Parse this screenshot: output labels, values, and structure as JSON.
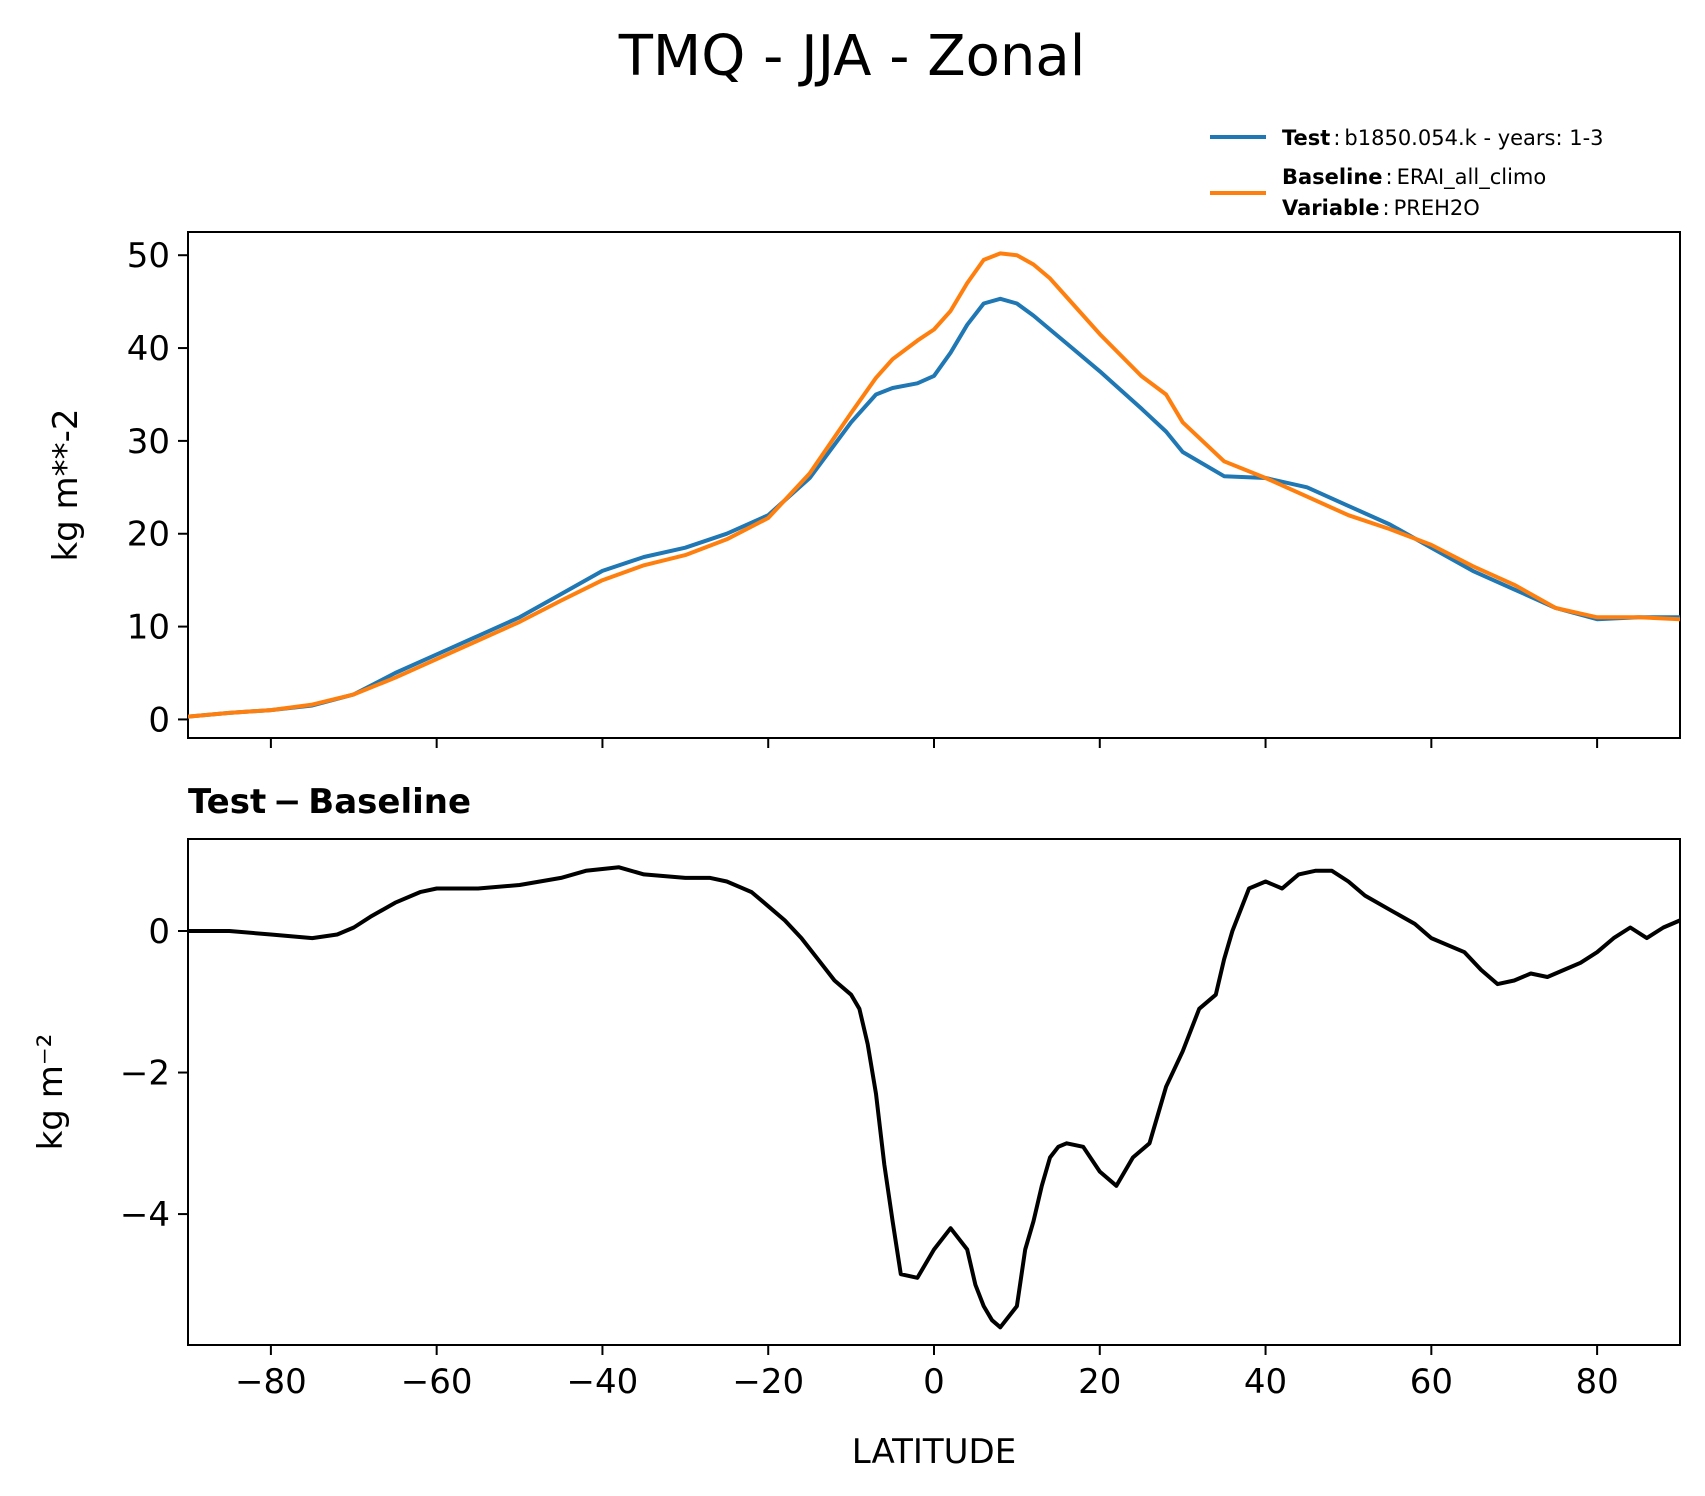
{
  "chart_data": [
    {
      "type": "line",
      "title": "TMQ - JJA - Zonal",
      "ylabel": "kg m**-2",
      "xlim": [
        -90,
        90
      ],
      "ylim": [
        -2,
        52.5
      ],
      "yticks": [
        0,
        10,
        20,
        30,
        40,
        50
      ],
      "xticks": [
        -80,
        -60,
        -40,
        -20,
        0,
        20,
        40,
        60,
        80
      ],
      "grid": false,
      "legend": {
        "placement": "top-right",
        "entries": [
          {
            "key": "Test",
            "sep": ":",
            "text": "b1850.054.k - years: 1-3",
            "color": "#1f77b4"
          },
          {
            "key": "Baseline",
            "sep": ":",
            "text": "ERAI_all_climo",
            "key2": "Variable",
            "text2": "PREH2O",
            "color": "#ff7f0e"
          }
        ]
      },
      "x": [
        -90,
        -85,
        -80,
        -75,
        -70,
        -65,
        -60,
        -55,
        -50,
        -45,
        -40,
        -35,
        -30,
        -25,
        -20,
        -15,
        -10,
        -7,
        -5,
        -2,
        0,
        2,
        4,
        6,
        8,
        10,
        12,
        14,
        16,
        20,
        25,
        28,
        30,
        35,
        40,
        45,
        50,
        55,
        60,
        65,
        70,
        75,
        80,
        85,
        90
      ],
      "series": [
        {
          "name": "Test",
          "color": "#1f77b4",
          "values": [
            0.3,
            0.7,
            1.0,
            1.5,
            2.7,
            5.0,
            7.0,
            9.0,
            11.0,
            13.5,
            16.0,
            17.5,
            18.5,
            20.0,
            22.0,
            26.0,
            32.0,
            35.0,
            35.7,
            36.2,
            37.0,
            39.5,
            42.5,
            44.8,
            45.3,
            44.8,
            43.5,
            42.0,
            40.5,
            37.5,
            33.5,
            31.0,
            28.8,
            26.2,
            26.0,
            25.0,
            23.0,
            21.0,
            18.5,
            16.0,
            14.0,
            12.0,
            10.8,
            11.0,
            11.0
          ]
        },
        {
          "name": "Baseline",
          "color": "#ff7f0e",
          "values": [
            0.3,
            0.7,
            1.0,
            1.6,
            2.7,
            4.5,
            6.5,
            8.5,
            10.5,
            12.8,
            15.0,
            16.6,
            17.7,
            19.4,
            21.7,
            26.5,
            33.0,
            36.8,
            38.8,
            40.8,
            42.0,
            44.0,
            47.0,
            49.5,
            50.2,
            50.0,
            49.0,
            47.5,
            45.5,
            41.5,
            37.0,
            35.0,
            32.0,
            27.8,
            26.0,
            24.0,
            22.0,
            20.5,
            18.8,
            16.5,
            14.5,
            12.0,
            11.0,
            11.0,
            10.8
          ]
        }
      ]
    },
    {
      "type": "line",
      "title": "Test − Baseline",
      "ylabel": "kg m⁻²",
      "xlabel": "LATITUDE",
      "xlim": [
        -90,
        90
      ],
      "ylim": [
        -5.85,
        1.3
      ],
      "yticks": [
        {
          "value": 0,
          "label": "0"
        },
        {
          "value": -2,
          "label": "−2"
        },
        {
          "value": -4,
          "label": "−4"
        }
      ],
      "xticks": [
        {
          "value": -80,
          "label": "−80"
        },
        {
          "value": -60,
          "label": "−60"
        },
        {
          "value": -40,
          "label": "−40"
        },
        {
          "value": -20,
          "label": "−20"
        },
        {
          "value": 0,
          "label": "0"
        },
        {
          "value": 20,
          "label": "20"
        },
        {
          "value": 40,
          "label": "40"
        },
        {
          "value": 60,
          "label": "60"
        },
        {
          "value": 80,
          "label": "80"
        }
      ],
      "grid": false,
      "color": "#000000",
      "x": [
        -90,
        -85,
        -80,
        -75,
        -72,
        -70,
        -68,
        -65,
        -62,
        -60,
        -55,
        -50,
        -45,
        -42,
        -38,
        -35,
        -30,
        -27,
        -25,
        -22,
        -20,
        -18,
        -16,
        -14,
        -12,
        -10,
        -9,
        -8,
        -7,
        -6,
        -5,
        -4,
        -2,
        -1,
        0,
        2,
        4,
        5,
        6,
        7,
        8,
        10,
        11,
        12,
        13,
        14,
        15,
        16,
        18,
        20,
        22,
        24,
        26,
        27,
        28,
        30,
        32,
        34,
        35,
        36,
        38,
        40,
        42,
        44,
        46,
        48,
        50,
        52,
        55,
        58,
        60,
        62,
        64,
        66,
        68,
        70,
        72,
        74,
        76,
        78,
        80,
        82,
        84,
        86,
        88,
        90
      ],
      "values": [
        0,
        0,
        -0.05,
        -0.1,
        -0.05,
        0.05,
        0.2,
        0.4,
        0.55,
        0.6,
        0.6,
        0.65,
        0.75,
        0.85,
        0.9,
        0.8,
        0.75,
        0.75,
        0.7,
        0.55,
        0.35,
        0.15,
        -0.1,
        -0.4,
        -0.7,
        -0.9,
        -1.1,
        -1.6,
        -2.3,
        -3.3,
        -4.1,
        -4.85,
        -4.9,
        -4.7,
        -4.5,
        -4.2,
        -4.5,
        -5.0,
        -5.3,
        -5.5,
        -5.6,
        -5.3,
        -4.5,
        -4.1,
        -3.6,
        -3.2,
        -3.05,
        -3.0,
        -3.05,
        -3.4,
        -3.6,
        -3.2,
        -3.0,
        -2.6,
        -2.2,
        -1.7,
        -1.1,
        -0.9,
        -0.4,
        0.0,
        0.6,
        0.7,
        0.6,
        0.8,
        0.85,
        0.85,
        0.7,
        0.5,
        0.3,
        0.1,
        -0.1,
        -0.2,
        -0.3,
        -0.55,
        -0.75,
        -0.7,
        -0.6,
        -0.65,
        -0.55,
        -0.45,
        -0.3,
        -0.1,
        0.05,
        -0.1,
        0.05,
        0.15
      ]
    }
  ]
}
